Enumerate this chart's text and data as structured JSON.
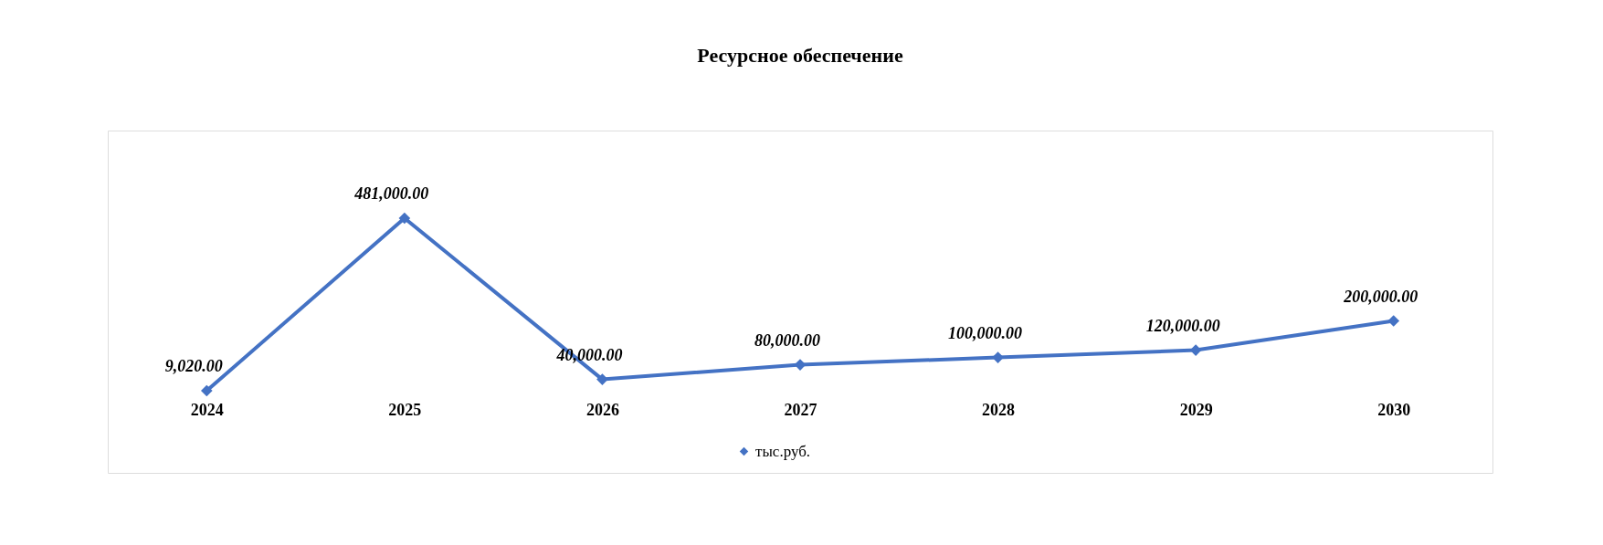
{
  "chart_data": {
    "type": "line",
    "title": "Ресурсное обеспечение",
    "categories": [
      "2024",
      "2025",
      "2026",
      "2027",
      "2028",
      "2029",
      "2030"
    ],
    "series": [
      {
        "name": "тыс.руб.",
        "color": "#4472c4",
        "values": [
          9020,
          481000,
          40000,
          80000,
          100000,
          120000,
          200000
        ],
        "value_labels": [
          "9,020.00",
          "481,000.00",
          "40,000.00",
          "80,000.00",
          "100,000.00",
          "120,000.00",
          "200,000.00"
        ]
      }
    ],
    "marker": "diamond",
    "line_style": "solid",
    "legend": "bottom",
    "grid": false
  }
}
